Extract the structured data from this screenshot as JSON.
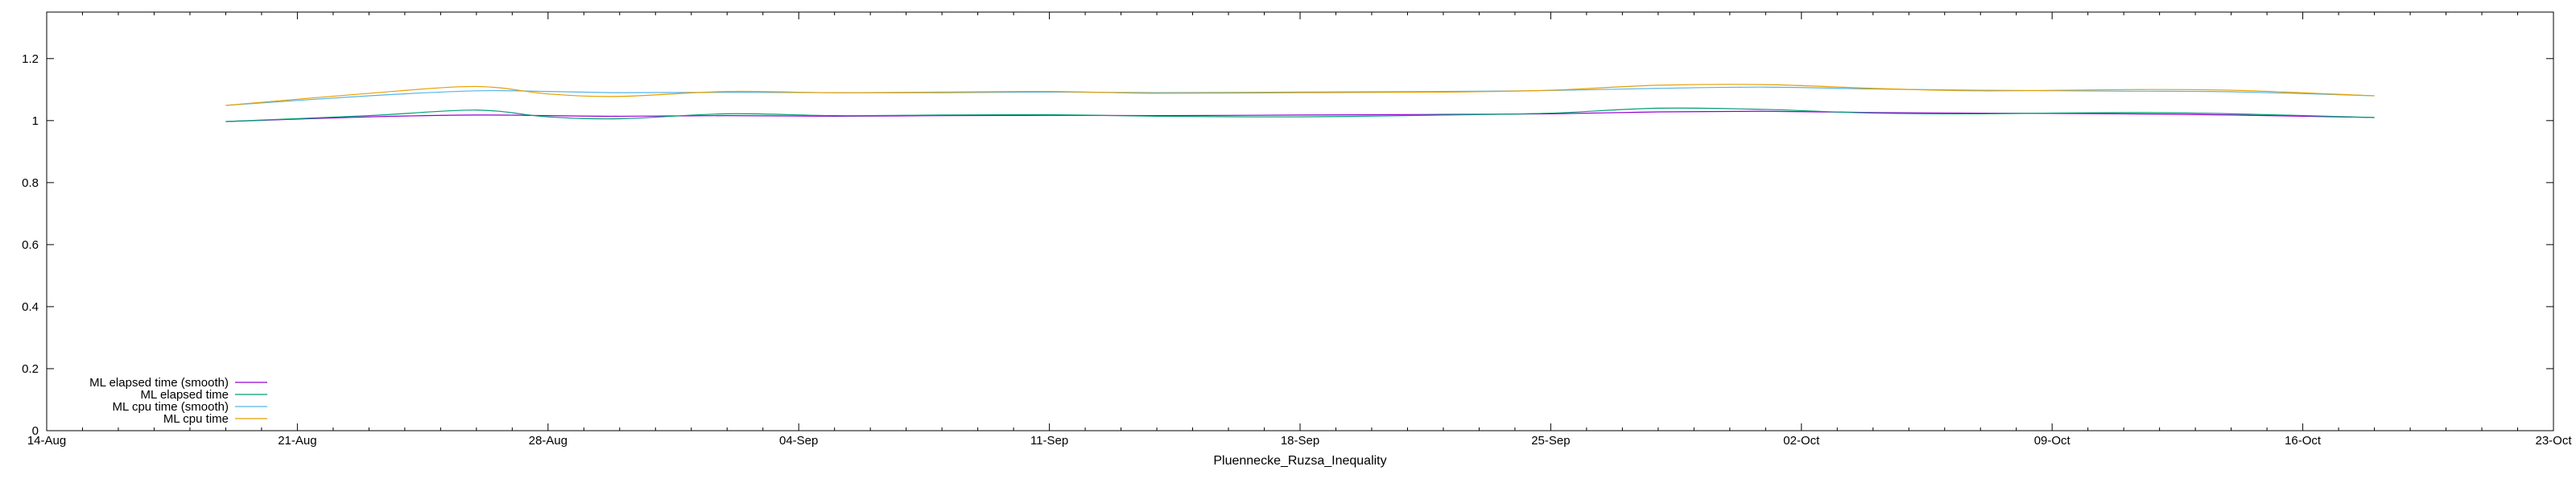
{
  "chart_data": {
    "type": "line",
    "title": "",
    "xlabel": "Pluennecke_Ruzsa_Inequality",
    "ylabel": "",
    "x_ticks": [
      "14-Aug",
      "21-Aug",
      "28-Aug",
      "04-Sep",
      "11-Sep",
      "18-Sep",
      "25-Sep",
      "02-Oct",
      "09-Oct",
      "16-Oct",
      "23-Oct"
    ],
    "y_ticks": [
      "0",
      "0.2",
      "0.4",
      "0.6",
      "0.8",
      "1",
      "1.2"
    ],
    "ylim": [
      0,
      1.35
    ],
    "grid": false,
    "legend_position": "bottom-left",
    "x": [
      "19-Aug",
      "23-Aug",
      "26-Aug",
      "28-Aug",
      "30-Aug",
      "02-Sep",
      "05-Sep",
      "08-Sep",
      "11-Sep",
      "14-Sep",
      "18-Sep",
      "22-Sep",
      "25-Sep",
      "28-Sep",
      "01-Oct",
      "04-Oct",
      "07-Oct",
      "11-Oct",
      "14-Oct",
      "18-Oct"
    ],
    "series": [
      {
        "name": "ML elapsed time (smooth)",
        "color": "#9400d3",
        "values": [
          0.997,
          1.012,
          1.018,
          1.016,
          1.014,
          1.016,
          1.014,
          1.016,
          1.017,
          1.016,
          1.018,
          1.02,
          1.022,
          1.028,
          1.03,
          1.026,
          1.024,
          1.022,
          1.018,
          1.01
        ]
      },
      {
        "name": "ML elapsed time",
        "color": "#009e73",
        "values": [
          0.997,
          1.016,
          1.034,
          1.012,
          1.006,
          1.022,
          1.016,
          1.018,
          1.019,
          1.014,
          1.012,
          1.018,
          1.024,
          1.04,
          1.036,
          1.024,
          1.022,
          1.026,
          1.022,
          1.01
        ]
      },
      {
        "name": "ML cpu time (smooth)",
        "color": "#56b4e9",
        "values": [
          1.049,
          1.08,
          1.096,
          1.094,
          1.09,
          1.091,
          1.09,
          1.09,
          1.092,
          1.09,
          1.092,
          1.094,
          1.097,
          1.104,
          1.108,
          1.102,
          1.098,
          1.095,
          1.093,
          1.08
        ]
      },
      {
        "name": "ML cpu time",
        "color": "#e69f00",
        "values": [
          1.049,
          1.088,
          1.11,
          1.086,
          1.078,
          1.094,
          1.09,
          1.092,
          1.094,
          1.088,
          1.09,
          1.092,
          1.098,
          1.114,
          1.116,
          1.104,
          1.096,
          1.1,
          1.098,
          1.08
        ]
      }
    ]
  }
}
